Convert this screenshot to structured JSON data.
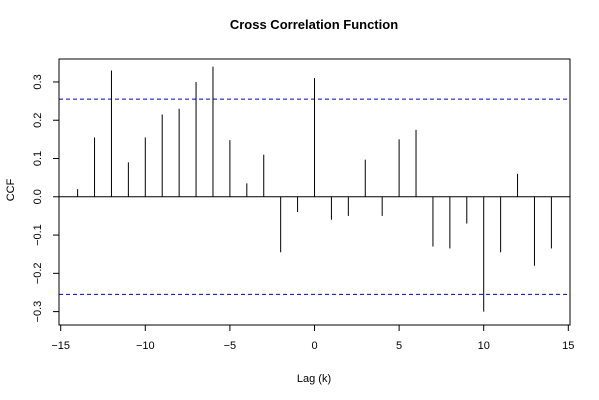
{
  "chart_data": {
    "type": "bar",
    "title": "Cross Correlation Function",
    "xlabel": "Lag (k)",
    "ylabel": "CCF",
    "xlim": [
      -15.1,
      15.1
    ],
    "ylim": [
      -0.335,
      0.36
    ],
    "x_ticks": [
      -15,
      -10,
      -5,
      0,
      5,
      10,
      15
    ],
    "x_tick_labels": [
      "−15",
      "−10",
      "−5",
      "0",
      "5",
      "10",
      "15"
    ],
    "y_ticks": [
      -0.3,
      -0.2,
      -0.1,
      0.0,
      0.1,
      0.2,
      0.3
    ],
    "y_tick_labels": [
      "−0.3",
      "−0.2",
      "−0.1",
      "0.0",
      "0.1",
      "0.2",
      "0.3"
    ],
    "lags": [
      -14,
      -13,
      -12,
      -11,
      -10,
      -9,
      -8,
      -7,
      -6,
      -5,
      -4,
      -3,
      -2,
      -1,
      0,
      1,
      2,
      3,
      4,
      5,
      6,
      7,
      8,
      9,
      10,
      11,
      12,
      13,
      14
    ],
    "values": [
      0.02,
      0.155,
      0.33,
      0.09,
      0.155,
      0.215,
      0.23,
      0.3,
      0.34,
      0.148,
      0.035,
      0.11,
      -0.145,
      -0.04,
      0.31,
      -0.06,
      -0.05,
      0.097,
      -0.05,
      0.15,
      0.175,
      -0.13,
      -0.135,
      -0.07,
      -0.3,
      -0.145,
      0.06,
      -0.18,
      -0.135
    ],
    "confidence_bounds": [
      0.255,
      -0.255
    ],
    "confidence_color": "#0000cc",
    "bar_color": "#000000",
    "zero_line": true,
    "grid": false
  }
}
